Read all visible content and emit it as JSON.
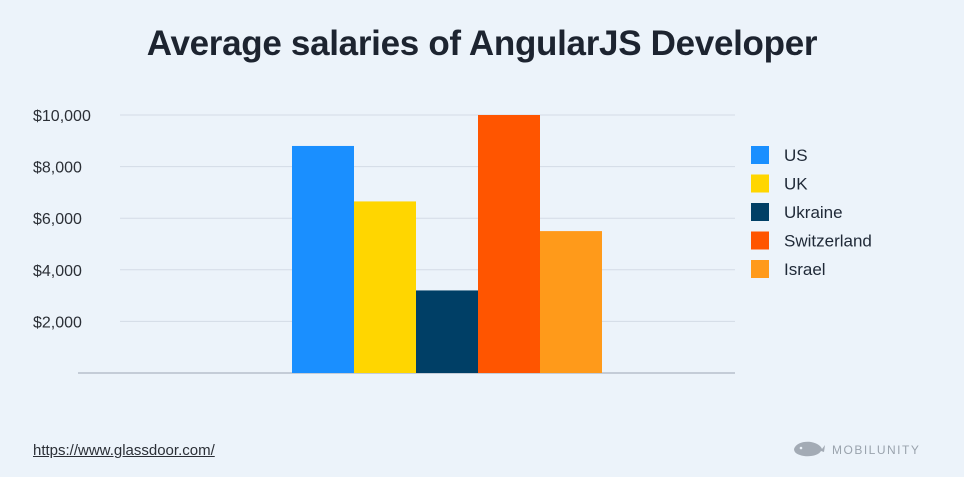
{
  "colors": {
    "background": "#ecf3fa",
    "grid": "#d3dbe6",
    "axis": "#9ba6b4"
  },
  "footer": {
    "source": "https://www.glassdoor.com/",
    "brand": "MOBILUNITY",
    "brand_icon": "whale-logo-icon"
  },
  "chart_data": {
    "type": "bar",
    "title": "Average salaries of AngularJS Developer",
    "xlabel": "",
    "ylabel": "",
    "ylim": [
      0,
      10000
    ],
    "yticks": [
      2000,
      4000,
      6000,
      8000,
      10000
    ],
    "ytick_labels": [
      "$2,000",
      "$4,000",
      "$6,000",
      "$8,000",
      "$10,000"
    ],
    "grid": true,
    "legend_position": "right",
    "series": [
      {
        "name": "US",
        "value": 8800,
        "color": "#1a8fff"
      },
      {
        "name": "UK",
        "value": 6650,
        "color": "#ffd600"
      },
      {
        "name": "Ukraine",
        "value": 3200,
        "color": "#003f66"
      },
      {
        "name": "Switzerland",
        "value": 10000,
        "color": "#ff5500"
      },
      {
        "name": "Israel",
        "value": 5500,
        "color": "#ff9a1a"
      }
    ]
  }
}
